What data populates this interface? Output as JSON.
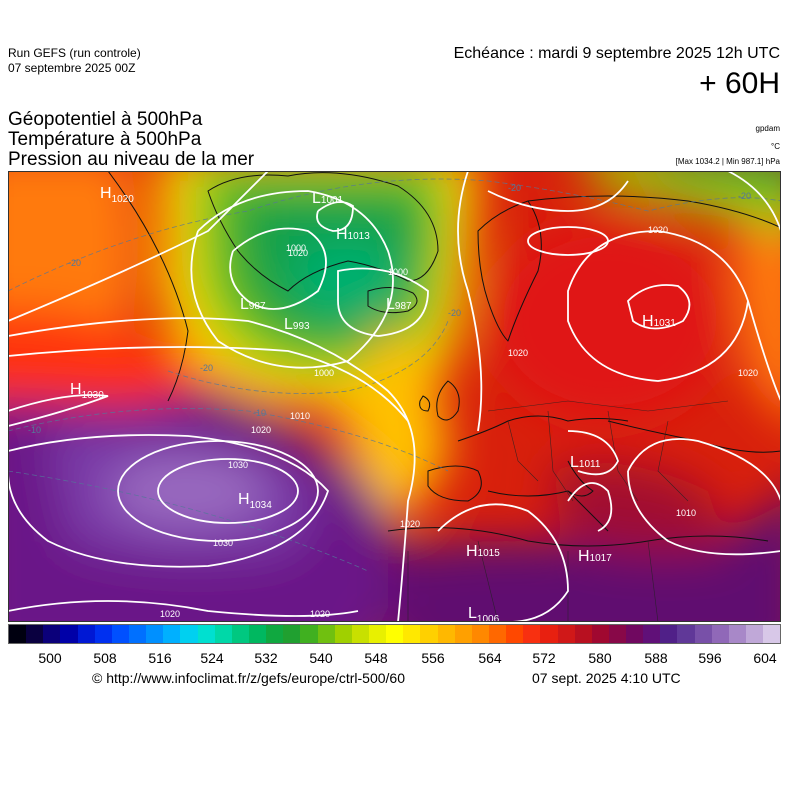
{
  "header": {
    "run_title": "Run GEFS (run controle)",
    "run_date": "07 septembre 2025 00Z",
    "echeance": "Echéance : mardi 9 septembre 2025 12h UTC",
    "horizon": "+ 60H"
  },
  "variables": {
    "geopotential": "Géopotentiel à 500hPa",
    "temperature": "Température à 500hPa",
    "pressure": "Pression au niveau de la mer"
  },
  "units": {
    "geopotential": "gpdam",
    "temperature": "°C",
    "pressure": "[Max 1034.2 | Min 987.1] hPa"
  },
  "colorbar": {
    "ticks": [
      "500",
      "508",
      "516",
      "524",
      "532",
      "540",
      "548",
      "556",
      "564",
      "572",
      "580",
      "588",
      "596",
      "604"
    ],
    "colors": [
      "#000010",
      "#0a0040",
      "#0b007a",
      "#0000a8",
      "#0018d4",
      "#0030f0",
      "#0050ff",
      "#0070ff",
      "#0090ff",
      "#00b0ff",
      "#00d0f0",
      "#00e0d0",
      "#00d8a8",
      "#00c880",
      "#00b860",
      "#10a840",
      "#20a030",
      "#40b020",
      "#70c010",
      "#a0d000",
      "#c8e000",
      "#e8f000",
      "#ffff00",
      "#ffe800",
      "#ffd000",
      "#ffb800",
      "#ffa000",
      "#ff8800",
      "#ff6800",
      "#ff4800",
      "#f83010",
      "#e82010",
      "#d01818",
      "#b81020",
      "#a00830",
      "#880848",
      "#700860",
      "#601078",
      "#502088",
      "#603898",
      "#7850a8",
      "#9068b8",
      "#a888c8",
      "#c0a8d8",
      "#d8c8e8"
    ]
  },
  "pressure_labels": [
    {
      "kind": "H",
      "value": "1020",
      "region": "greenland-west"
    },
    {
      "kind": "L",
      "value": "1001",
      "region": "greenland-north"
    },
    {
      "kind": "H",
      "value": "1013",
      "region": "greenland-center"
    },
    {
      "kind": "L",
      "value": "987",
      "region": "greenland-south"
    },
    {
      "kind": "L",
      "value": "993",
      "region": "labrador-sea"
    },
    {
      "kind": "L",
      "value": "987",
      "region": "iceland"
    },
    {
      "kind": "H",
      "value": "1031",
      "region": "russia"
    },
    {
      "kind": "H",
      "value": "1030",
      "region": "atlantic-west"
    },
    {
      "kind": "H",
      "value": "1034",
      "region": "azores"
    },
    {
      "kind": "L",
      "value": "1011",
      "region": "italy"
    },
    {
      "kind": "H",
      "value": "1015",
      "region": "north-africa"
    },
    {
      "kind": "H",
      "value": "1017",
      "region": "libya"
    },
    {
      "kind": "L",
      "value": "1006",
      "region": "sahara"
    }
  ],
  "isobar_labels": [
    "1000",
    "1000",
    "1000",
    "1010",
    "1020",
    "1030",
    "1030",
    "1020",
    "1020",
    "1020",
    "1020",
    "1010",
    "1020",
    "1020",
    "1020"
  ],
  "temp_labels": [
    "-20",
    "-20",
    "-20",
    "-20",
    "-10",
    "-10",
    "-20"
  ],
  "footer": {
    "url": "© http://www.infoclimat.fr/z/gefs/europe/ctrl-500/60",
    "generated": "07 sept. 2025  4:10 UTC"
  }
}
